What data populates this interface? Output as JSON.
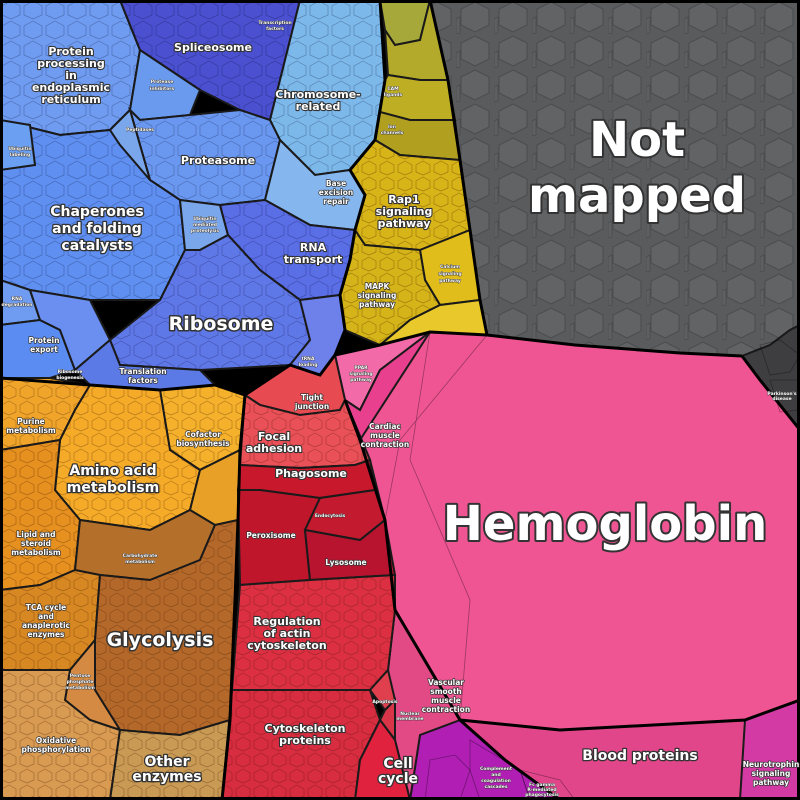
{
  "diagram": {
    "labels": {
      "not_mapped": [
        "Not",
        "mapped"
      ],
      "hemoglobin": "Hemoglobin",
      "blood_proteins": "Blood proteins",
      "ribosome": "Ribosome",
      "chaperones": [
        "Chaperones",
        "and folding",
        "catalysts"
      ],
      "proteasome": "Proteasome",
      "spliceosome": "Spliceosome",
      "protein_er": [
        "Protein",
        "processing",
        "in",
        "endoplasmic",
        "reticulum"
      ],
      "chromosome": [
        "Chromosome-",
        "related"
      ],
      "rna_transport": [
        "RNA",
        "transport"
      ],
      "base_excision": [
        "Base",
        "excision",
        "repair"
      ],
      "rap1": [
        "Rap1",
        "signaling",
        "pathway"
      ],
      "mapk": [
        "MAPK",
        "signaling",
        "pathway"
      ],
      "calcium": [
        "Calcium",
        "signaling",
        "pathway"
      ],
      "cam_ligands": [
        "CAM",
        "ligands"
      ],
      "ion_channels": [
        "Ion",
        "channels"
      ],
      "translation_factors": [
        "Translation",
        "factors"
      ],
      "protein_export": [
        "Protein",
        "export"
      ],
      "protease_inhibitors": [
        "Protease",
        "inhibitors"
      ],
      "peptidases": "Peptidases",
      "ubiquitin_labeling": [
        "Ubiquitin",
        "labeling"
      ],
      "ubiquitin_proteolysis": [
        "Ubiquitin",
        "mediated",
        "proteolysis"
      ],
      "rna_degradation": [
        "RNA",
        "degradation"
      ],
      "trna_loading": [
        "tRNA",
        "loading"
      ],
      "transcription_factors": [
        "Transcription",
        "factors"
      ],
      "ppar": [
        "PPAR",
        "signaling",
        "pathway"
      ],
      "tight_junction": [
        "Tight",
        "junction"
      ],
      "focal_adhesion": [
        "Focal",
        "adhesion"
      ],
      "cardiac": [
        "Cardiac",
        "muscle",
        "contraction"
      ],
      "amino_acid": [
        "Amino acid",
        "metabolism"
      ],
      "purine": [
        "Purine",
        "metabolism"
      ],
      "cofactor": [
        "Cofactor",
        "biosynthesis"
      ],
      "lipid": [
        "Lipid and",
        "steroid",
        "metabolism"
      ],
      "glycolysis": "Glycolysis",
      "tca": [
        "TCA cycle",
        "and",
        "anaplerotic",
        "enzymes"
      ],
      "carbohydrate": [
        "Carbohydrate",
        "metabolism"
      ],
      "pentose": [
        "Pentose",
        "phosphate",
        "metabolism"
      ],
      "oxidative": [
        "Oxidative",
        "phosphorylation"
      ],
      "other_enzymes": [
        "Other",
        "enzymes"
      ],
      "phagosome": "Phagosome",
      "peroxisome": "Peroxisome",
      "endocytosis": "Endocytosis",
      "lysosome": "Lysosome",
      "actin": [
        "Regulation",
        "of actin",
        "cytoskeleton"
      ],
      "cytoskeleton": [
        "Cytoskeleton",
        "proteins"
      ],
      "cell_cycle": [
        "Cell",
        "cycle"
      ],
      "vascular": [
        "Vascular",
        "smooth",
        "muscle",
        "contraction"
      ],
      "complement": [
        "Complement",
        "and",
        "coagulation",
        "cascades"
      ],
      "neurotrophin": [
        "Neurotrophin",
        "signaling",
        "pathway"
      ],
      "parkinsons": [
        "Parkinson's",
        "disease"
      ],
      "apoptosis": "Apoptosis",
      "nuclear_membrane": [
        "Nuclear",
        "membrane"
      ],
      "endocytosis2": "Endocytosis",
      "ribosome_biogenesis": [
        "Ribosome",
        "biogenesis"
      ],
      "fc_gamma": [
        "Fc gamma",
        "R-mediated",
        "phagocytosis"
      ]
    },
    "colors": {
      "not_mapped": "#58595b",
      "hemoglobin": "#ee5592",
      "blood": "#e2468a",
      "blue_light": "#7aa6f0",
      "blue_mid": "#5b7ee8",
      "blue_dark": "#4b55cf",
      "sky": "#7cb8ea",
      "yellow": "#d7b418",
      "olive": "#b3a92a",
      "orange": "#f0a52a",
      "orange_dark": "#d88822",
      "brown": "#b46a2a",
      "tan": "#c89a54",
      "red": "#d42c44",
      "red_dark": "#b41428",
      "salmon": "#ee5560",
      "pink": "#f2a0a0",
      "magenta": "#c01ab8",
      "purple": "#8c1a9e"
    }
  }
}
